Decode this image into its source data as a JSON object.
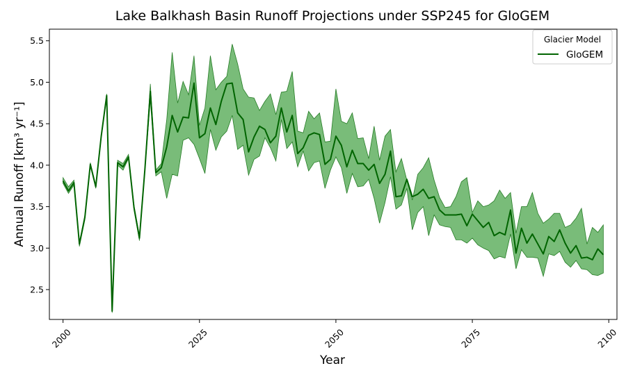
{
  "chart_data": {
    "type": "line",
    "title": "Lake Balkhash Basin Runoff Projections under SSP245 for GloGEM",
    "xlabel": "Year",
    "ylabel": "Annual Runoff [km³ yr⁻¹]",
    "xlim": [
      1997.5,
      2101.5
    ],
    "ylim": [
      2.14,
      5.64
    ],
    "x_ticks": [
      2000,
      2025,
      2050,
      2075,
      2100
    ],
    "x_tick_labels": [
      "2000",
      "2025",
      "2050",
      "2075",
      "2100"
    ],
    "y_ticks": [
      2.5,
      3.0,
      3.5,
      4.0,
      4.5,
      5.0,
      5.5
    ],
    "y_tick_labels": [
      "2.5",
      "3.0",
      "3.5",
      "4.0",
      "4.5",
      "5.0",
      "5.5"
    ],
    "grid": false,
    "legend": {
      "title": "Glacier Model",
      "entries": [
        "GloGEM"
      ],
      "placement": "top-right"
    },
    "colors": {
      "line": "#006400",
      "band": "#4ca64c"
    },
    "x": [
      2000,
      2001,
      2002,
      2003,
      2004,
      2005,
      2006,
      2007,
      2008,
      2009,
      2010,
      2011,
      2012,
      2013,
      2014,
      2015,
      2016,
      2017,
      2018,
      2019,
      2020,
      2021,
      2022,
      2023,
      2024,
      2025,
      2026,
      2027,
      2028,
      2029,
      2030,
      2031,
      2032,
      2033,
      2034,
      2035,
      2036,
      2037,
      2038,
      2039,
      2040,
      2041,
      2042,
      2043,
      2044,
      2045,
      2046,
      2047,
      2048,
      2049,
      2050,
      2051,
      2052,
      2053,
      2054,
      2055,
      2056,
      2057,
      2058,
      2059,
      2060,
      2061,
      2062,
      2063,
      2064,
      2065,
      2066,
      2067,
      2068,
      2069,
      2070,
      2071,
      2072,
      2073,
      2074,
      2075,
      2076,
      2077,
      2078,
      2079,
      2080,
      2081,
      2082,
      2083,
      2084,
      2085,
      2086,
      2087,
      2088,
      2089,
      2090,
      2091,
      2092,
      2093,
      2094,
      2095,
      2096,
      2097,
      2098,
      2099
    ],
    "series": [
      {
        "name": "GloGEM",
        "mean": [
          3.81,
          3.69,
          3.79,
          3.05,
          3.37,
          4.01,
          3.74,
          4.35,
          4.84,
          2.24,
          4.03,
          3.98,
          4.1,
          3.49,
          3.12,
          3.95,
          4.89,
          3.91,
          3.97,
          4.22,
          4.6,
          4.4,
          4.58,
          4.57,
          4.99,
          4.33,
          4.38,
          4.69,
          4.49,
          4.77,
          4.98,
          4.99,
          4.63,
          4.55,
          4.16,
          4.34,
          4.47,
          4.43,
          4.27,
          4.35,
          4.69,
          4.4,
          4.6,
          4.14,
          4.21,
          4.36,
          4.39,
          4.37,
          4.01,
          4.07,
          4.35,
          4.24,
          3.98,
          4.18,
          4.02,
          4.02,
          3.94,
          4.01,
          3.78,
          3.89,
          4.17,
          3.62,
          3.63,
          3.83,
          3.62,
          3.65,
          3.71,
          3.6,
          3.62,
          3.46,
          3.4,
          3.4,
          3.4,
          3.41,
          3.27,
          3.41,
          3.33,
          3.25,
          3.31,
          3.15,
          3.19,
          3.16,
          3.46,
          2.94,
          3.24,
          3.06,
          3.17,
          3.05,
          2.93,
          3.14,
          3.08,
          3.22,
          3.06,
          2.94,
          3.03,
          2.88,
          2.89,
          2.86,
          2.99,
          2.92
        ],
        "upper": [
          3.85,
          3.74,
          3.82,
          3.07,
          3.4,
          4.03,
          3.76,
          4.37,
          4.86,
          2.26,
          4.06,
          4.02,
          4.13,
          3.52,
          3.15,
          3.97,
          4.98,
          3.94,
          4.02,
          4.55,
          5.36,
          4.75,
          5.01,
          4.85,
          5.32,
          4.48,
          4.69,
          5.32,
          4.91,
          5.0,
          5.07,
          5.46,
          5.22,
          4.92,
          4.82,
          4.81,
          4.66,
          4.77,
          4.86,
          4.61,
          4.88,
          4.89,
          5.13,
          4.41,
          4.39,
          4.65,
          4.56,
          4.63,
          4.28,
          4.29,
          4.92,
          4.53,
          4.5,
          4.63,
          4.32,
          4.33,
          4.08,
          4.47,
          4.06,
          4.35,
          4.43,
          3.92,
          4.08,
          3.82,
          3.58,
          3.89,
          3.97,
          4.09,
          3.82,
          3.61,
          3.49,
          3.5,
          3.62,
          3.8,
          3.85,
          3.43,
          3.57,
          3.5,
          3.52,
          3.57,
          3.7,
          3.6,
          3.67,
          3.18,
          3.5,
          3.5,
          3.67,
          3.42,
          3.3,
          3.35,
          3.42,
          3.42,
          3.25,
          3.28,
          3.36,
          3.48,
          3.05,
          3.25,
          3.19,
          3.28
        ],
        "lower": [
          3.78,
          3.66,
          3.76,
          3.02,
          3.34,
          3.99,
          3.72,
          4.33,
          4.82,
          2.22,
          4.0,
          3.94,
          4.08,
          3.46,
          3.09,
          3.93,
          4.79,
          3.87,
          3.92,
          3.6,
          3.89,
          3.87,
          4.3,
          4.33,
          4.25,
          4.08,
          3.9,
          4.43,
          4.18,
          4.34,
          4.41,
          4.6,
          4.19,
          4.24,
          3.88,
          4.07,
          4.11,
          4.33,
          4.21,
          4.05,
          4.55,
          4.2,
          4.28,
          3.98,
          4.17,
          3.93,
          4.03,
          4.05,
          3.72,
          3.94,
          4.1,
          3.97,
          3.66,
          3.9,
          3.74,
          3.75,
          3.83,
          3.6,
          3.3,
          3.55,
          3.86,
          3.47,
          3.52,
          3.72,
          3.22,
          3.43,
          3.5,
          3.15,
          3.4,
          3.28,
          3.26,
          3.25,
          3.1,
          3.1,
          3.06,
          3.12,
          3.04,
          3.0,
          2.97,
          2.87,
          2.9,
          2.88,
          3.17,
          2.75,
          2.98,
          2.89,
          2.89,
          2.88,
          2.66,
          2.93,
          2.91,
          2.96,
          2.83,
          2.77,
          2.85,
          2.75,
          2.74,
          2.68,
          2.67,
          2.7
        ]
      }
    ]
  }
}
